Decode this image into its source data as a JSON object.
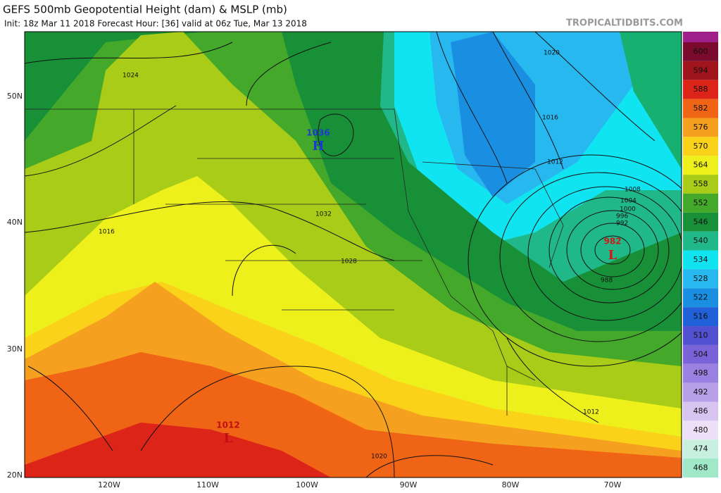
{
  "header": {
    "title": "GEFS 500mb Geopotential Height (dam) & MSLP (mb)",
    "subtitle": "Init: 18z Mar 11 2018   Forecast Hour: [36]   valid at 06z Tue, Mar 13 2018",
    "brand": "TROPICALTIDBITS.COM"
  },
  "colorbar": {
    "labels": [
      "600",
      "594",
      "588",
      "582",
      "576",
      "570",
      "564",
      "558",
      "552",
      "546",
      "540",
      "534",
      "528",
      "522",
      "516",
      "510",
      "504",
      "498",
      "492",
      "486",
      "480",
      "474",
      "468"
    ],
    "colors": [
      "#7a0b2e",
      "#a0141c",
      "#dc2418",
      "#f06416",
      "#f5a01e",
      "#fbd21a",
      "#eef01c",
      "#a8cc18",
      "#44a82a",
      "#189038",
      "#20b888",
      "#10e4f0",
      "#28b8f0",
      "#1a8ee0",
      "#2060d8",
      "#5050d0",
      "#7a62d8",
      "#9a80e0",
      "#b8a0e8",
      "#d8c4f0",
      "#eee0f8",
      "#c8f0e0",
      "#a0e8c8"
    ]
  },
  "contour_labels": [
    "1024",
    "1016",
    "1032",
    "1028",
    "1016",
    "1012",
    "1008",
    "1004",
    "1000",
    "996",
    "992",
    "988",
    "1012",
    "1020",
    "1020"
  ],
  "pressure_centers": [
    {
      "value": "1036",
      "marker": "H"
    },
    {
      "value": "982",
      "marker": "L"
    },
    {
      "value": "1012",
      "marker": "L"
    }
  ],
  "latitude_labels": [
    "50N",
    "40N",
    "30N",
    "20N"
  ],
  "longitude_labels": [
    "120W",
    "110W",
    "100W",
    "90W",
    "80W",
    "70W"
  ]
}
